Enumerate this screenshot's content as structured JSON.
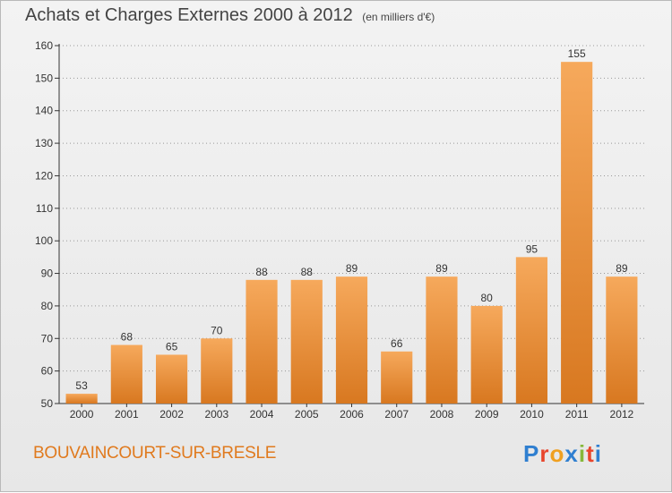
{
  "header": {
    "title": "Achats et Charges Externes 2000 à 2012",
    "subtitle": "(en milliers d'€)"
  },
  "footer": {
    "place": "BOUVAINCOURT-SUR-BRESLE",
    "logo": "Proxiti",
    "logo_colors": [
      "#2f7fd0",
      "#e8452c",
      "#f0a020",
      "#2f7fd0",
      "#86b83a",
      "#e8452c",
      "#2f7fd0"
    ]
  },
  "colors": {
    "bar_light": "#f6a95c",
    "bar_dark": "#d87820",
    "axis": "#333333",
    "grid": "#999999",
    "text": "#333333"
  },
  "chart_data": {
    "type": "bar",
    "categories": [
      "2000",
      "2001",
      "2002",
      "2003",
      "2004",
      "2005",
      "2006",
      "2007",
      "2008",
      "2009",
      "2010",
      "2011",
      "2012"
    ],
    "values": [
      53,
      68,
      65,
      70,
      88,
      88,
      89,
      66,
      89,
      80,
      95,
      155,
      89
    ],
    "ylim": [
      50,
      160
    ],
    "yticks": [
      50,
      60,
      70,
      80,
      90,
      100,
      110,
      120,
      130,
      140,
      150,
      160
    ],
    "grid": "horizontal dotted",
    "legend": "none"
  }
}
